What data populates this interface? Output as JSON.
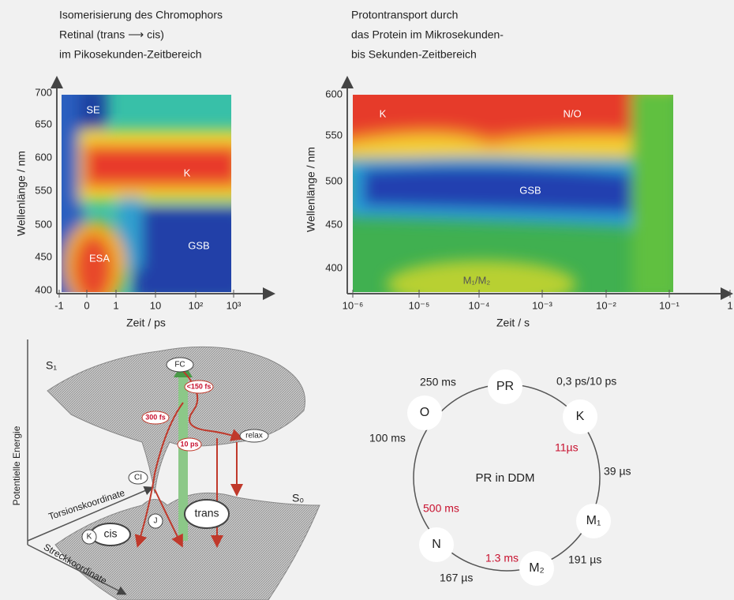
{
  "panel_a": {
    "title_lines": [
      "Isomerisierung des Chromophors",
      "Retinal (trans ⟶ cis)",
      "im Pikosekunden-Zeitbereich"
    ],
    "y_label": "Wellenlänge / nm",
    "y_ticks": [
      "700",
      "650",
      "600",
      "550",
      "500",
      "450",
      "400"
    ],
    "x_label": "Zeit / ps",
    "x_ticks": [
      "-1",
      "0",
      "1",
      "10",
      "10²",
      "10³"
    ],
    "regions": [
      "SE",
      "K",
      "ESA",
      "GSB"
    ]
  },
  "panel_b": {
    "title_lines": [
      "Protontransport durch",
      "das Protein im Mikrosekunden-",
      "bis Sekunden-Zeitbereich"
    ],
    "y_label": "Wellenlänge / nm",
    "y_ticks": [
      "600",
      "550",
      "500",
      "450",
      "400"
    ],
    "x_label": "Zeit / s",
    "x_ticks": [
      "10⁻⁶",
      "10⁻⁵",
      "10⁻⁴",
      "10⁻³",
      "10⁻²",
      "10⁻¹",
      "1"
    ],
    "regions": [
      "K",
      "N/O",
      "GSB",
      "M₁/M₂"
    ]
  },
  "panel_c": {
    "states": [
      "S₁",
      "S₀"
    ],
    "axes": [
      "Potentielle Energie",
      "Torsionskoordinate",
      "Streckkoordinate"
    ],
    "labels": [
      "FC",
      "<150 fs",
      "300 fs",
      "10 ps",
      "relax",
      "CI",
      "J",
      "trans",
      "cis",
      "K"
    ]
  },
  "panel_d": {
    "center": "PR in DDM",
    "nodes": [
      "PR",
      "K",
      "M₁",
      "M₂",
      "N",
      "O"
    ],
    "times": [
      "0,3 ps/10 ps",
      "11µs",
      "39 µs",
      "191 µs",
      "1.3 ms",
      "167 µs",
      "500 ms",
      "100 ms",
      "250 ms"
    ]
  }
}
